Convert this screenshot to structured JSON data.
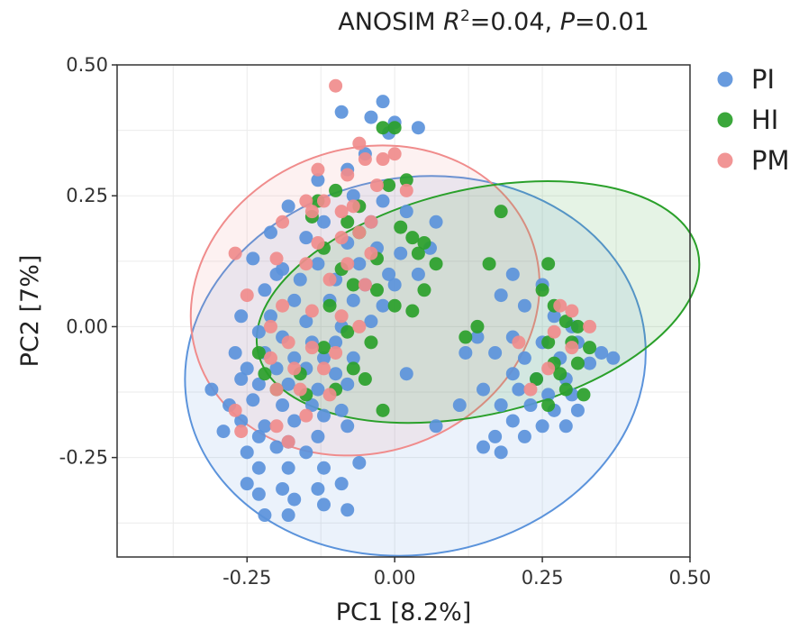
{
  "chart_data": {
    "type": "scatter",
    "title": "ANOSIM R²=0.04, P=0.01",
    "title_parts": {
      "method": "ANOSIM",
      "r_symbol": "R",
      "r_sup": "2",
      "r_value": "=0.04,",
      "p_symbol": "P",
      "p_value": "=0.01"
    },
    "xlabel": "PC1 [8.2%]",
    "ylabel": "PC2 [7%]",
    "xlim": [
      -0.47,
      0.5
    ],
    "ylim": [
      -0.44,
      0.5
    ],
    "xticks": [
      -0.25,
      0.0,
      0.25,
      0.5
    ],
    "xtick_labels": [
      "-0.25",
      "0.00",
      "0.25",
      "0.50"
    ],
    "yticks": [
      -0.25,
      0.0,
      0.25,
      0.5
    ],
    "ytick_labels": [
      "-0.25",
      "0.00",
      "0.25",
      "0.50"
    ],
    "grid": true,
    "legend_position": "top-right",
    "series": [
      {
        "name": "PI",
        "color": "#5b93db",
        "ellipse": {
          "cx": 0.035,
          "cy": -0.075,
          "rx": 0.392,
          "ry": 0.36,
          "angle": -10
        },
        "points": [
          [
            -0.02,
            0.43
          ],
          [
            -0.09,
            0.41
          ],
          [
            -0.04,
            0.4
          ],
          [
            0.0,
            0.39
          ],
          [
            0.04,
            0.38
          ],
          [
            -0.01,
            0.37
          ],
          [
            -0.05,
            0.33
          ],
          [
            -0.08,
            0.3
          ],
          [
            -0.13,
            0.28
          ],
          [
            -0.07,
            0.25
          ],
          [
            -0.02,
            0.24
          ],
          [
            0.02,
            0.22
          ],
          [
            -0.18,
            0.23
          ],
          [
            -0.12,
            0.2
          ],
          [
            -0.04,
            0.2
          ],
          [
            0.07,
            0.2
          ],
          [
            -0.21,
            0.18
          ],
          [
            -0.15,
            0.17
          ],
          [
            -0.08,
            0.16
          ],
          [
            -0.03,
            0.15
          ],
          [
            0.01,
            0.14
          ],
          [
            0.06,
            0.15
          ],
          [
            -0.24,
            0.13
          ],
          [
            -0.19,
            0.11
          ],
          [
            -0.13,
            0.12
          ],
          [
            -0.06,
            0.12
          ],
          [
            -0.01,
            0.1
          ],
          [
            0.04,
            0.1
          ],
          [
            -0.2,
            0.1
          ],
          [
            -0.16,
            0.09
          ],
          [
            -0.1,
            0.09
          ],
          [
            -0.05,
            0.08
          ],
          [
            0.0,
            0.08
          ],
          [
            -0.22,
            0.07
          ],
          [
            -0.17,
            0.05
          ],
          [
            -0.11,
            0.05
          ],
          [
            -0.07,
            0.05
          ],
          [
            -0.02,
            0.04
          ],
          [
            -0.26,
            0.02
          ],
          [
            -0.21,
            0.02
          ],
          [
            -0.15,
            0.01
          ],
          [
            -0.09,
            0.0
          ],
          [
            -0.04,
            0.01
          ],
          [
            -0.23,
            -0.01
          ],
          [
            -0.19,
            -0.02
          ],
          [
            -0.14,
            -0.03
          ],
          [
            -0.1,
            -0.03
          ],
          [
            -0.27,
            -0.05
          ],
          [
            -0.22,
            -0.05
          ],
          [
            -0.17,
            -0.06
          ],
          [
            -0.12,
            -0.06
          ],
          [
            -0.07,
            -0.06
          ],
          [
            -0.25,
            -0.08
          ],
          [
            -0.2,
            -0.08
          ],
          [
            -0.15,
            -0.08
          ],
          [
            -0.1,
            -0.09
          ],
          [
            0.02,
            -0.09
          ],
          [
            -0.31,
            -0.12
          ],
          [
            -0.26,
            -0.1
          ],
          [
            -0.23,
            -0.11
          ],
          [
            -0.18,
            -0.11
          ],
          [
            -0.13,
            -0.12
          ],
          [
            -0.08,
            -0.11
          ],
          [
            -0.28,
            -0.15
          ],
          [
            -0.24,
            -0.14
          ],
          [
            -0.19,
            -0.15
          ],
          [
            -0.14,
            -0.15
          ],
          [
            -0.09,
            -0.16
          ],
          [
            -0.26,
            -0.18
          ],
          [
            -0.22,
            -0.19
          ],
          [
            -0.17,
            -0.18
          ],
          [
            -0.12,
            -0.17
          ],
          [
            -0.29,
            -0.2
          ],
          [
            -0.23,
            -0.21
          ],
          [
            -0.18,
            -0.22
          ],
          [
            -0.13,
            -0.21
          ],
          [
            -0.08,
            -0.19
          ],
          [
            -0.25,
            -0.24
          ],
          [
            -0.2,
            -0.23
          ],
          [
            -0.15,
            -0.24
          ],
          [
            -0.23,
            -0.27
          ],
          [
            -0.18,
            -0.27
          ],
          [
            -0.12,
            -0.27
          ],
          [
            -0.06,
            -0.26
          ],
          [
            -0.25,
            -0.3
          ],
          [
            -0.19,
            -0.31
          ],
          [
            -0.13,
            -0.31
          ],
          [
            -0.09,
            -0.3
          ],
          [
            -0.23,
            -0.32
          ],
          [
            -0.17,
            -0.33
          ],
          [
            -0.12,
            -0.34
          ],
          [
            -0.08,
            -0.35
          ],
          [
            -0.22,
            -0.36
          ],
          [
            -0.18,
            -0.36
          ],
          [
            0.2,
            0.1
          ],
          [
            0.25,
            0.08
          ],
          [
            0.18,
            0.06
          ],
          [
            0.22,
            0.04
          ],
          [
            0.27,
            0.02
          ],
          [
            0.3,
            0.0
          ],
          [
            0.14,
            -0.02
          ],
          [
            0.2,
            -0.02
          ],
          [
            0.25,
            -0.03
          ],
          [
            0.31,
            -0.03
          ],
          [
            0.35,
            -0.05
          ],
          [
            0.12,
            -0.05
          ],
          [
            0.17,
            -0.05
          ],
          [
            0.22,
            -0.06
          ],
          [
            0.28,
            -0.06
          ],
          [
            0.33,
            -0.07
          ],
          [
            0.37,
            -0.06
          ],
          [
            0.2,
            -0.09
          ],
          [
            0.24,
            -0.1
          ],
          [
            0.29,
            -0.1
          ],
          [
            0.15,
            -0.12
          ],
          [
            0.21,
            -0.12
          ],
          [
            0.26,
            -0.13
          ],
          [
            0.3,
            -0.13
          ],
          [
            0.18,
            -0.15
          ],
          [
            0.23,
            -0.15
          ],
          [
            0.27,
            -0.16
          ],
          [
            0.31,
            -0.16
          ],
          [
            0.2,
            -0.18
          ],
          [
            0.25,
            -0.19
          ],
          [
            0.29,
            -0.19
          ],
          [
            0.17,
            -0.21
          ],
          [
            0.22,
            -0.21
          ],
          [
            0.07,
            -0.19
          ],
          [
            0.15,
            -0.23
          ],
          [
            0.18,
            -0.24
          ],
          [
            0.11,
            -0.15
          ]
        ]
      },
      {
        "name": "HI",
        "color": "#2aa02a",
        "ellipse": {
          "cx": 0.141,
          "cy": 0.047,
          "rx": 0.382,
          "ry": 0.215,
          "angle": -13
        },
        "points": [
          [
            -0.02,
            0.38
          ],
          [
            0.0,
            0.38
          ],
          [
            -0.1,
            0.26
          ],
          [
            -0.13,
            0.24
          ],
          [
            -0.06,
            0.23
          ],
          [
            -0.01,
            0.27
          ],
          [
            0.02,
            0.28
          ],
          [
            0.18,
            0.22
          ],
          [
            -0.14,
            0.21
          ],
          [
            -0.08,
            0.2
          ],
          [
            0.01,
            0.19
          ],
          [
            0.03,
            0.17
          ],
          [
            0.05,
            0.16
          ],
          [
            -0.12,
            0.15
          ],
          [
            0.04,
            0.14
          ],
          [
            0.07,
            0.12
          ],
          [
            -0.09,
            0.11
          ],
          [
            0.16,
            0.12
          ],
          [
            -0.07,
            0.08
          ],
          [
            -0.03,
            0.07
          ],
          [
            0.05,
            0.07
          ],
          [
            -0.11,
            0.04
          ],
          [
            0.0,
            0.04
          ],
          [
            0.03,
            0.03
          ],
          [
            -0.08,
            -0.01
          ],
          [
            -0.04,
            -0.03
          ],
          [
            -0.12,
            -0.04
          ],
          [
            -0.07,
            -0.08
          ],
          [
            -0.16,
            -0.09
          ],
          [
            -0.05,
            -0.1
          ],
          [
            -0.1,
            -0.12
          ],
          [
            -0.02,
            -0.16
          ],
          [
            0.12,
            -0.02
          ],
          [
            0.26,
            0.12
          ],
          [
            0.25,
            0.07
          ],
          [
            0.27,
            0.04
          ],
          [
            0.29,
            0.01
          ],
          [
            0.31,
            0.0
          ],
          [
            0.26,
            -0.03
          ],
          [
            0.3,
            -0.03
          ],
          [
            0.33,
            -0.04
          ],
          [
            0.27,
            -0.07
          ],
          [
            0.31,
            -0.07
          ],
          [
            0.28,
            -0.09
          ],
          [
            0.24,
            -0.1
          ],
          [
            0.29,
            -0.12
          ],
          [
            0.32,
            -0.13
          ],
          [
            0.26,
            -0.15
          ],
          [
            -0.23,
            -0.05
          ],
          [
            -0.22,
            -0.09
          ],
          [
            -0.2,
            -0.12
          ],
          [
            -0.15,
            -0.13
          ],
          [
            -0.03,
            0.13
          ],
          [
            -0.06,
            0.18
          ],
          [
            0.14,
            0.0
          ]
        ]
      },
      {
        "name": "PM",
        "color": "#f08c8c",
        "ellipse": {
          "cx": -0.05,
          "cy": 0.05,
          "rx": 0.3,
          "ry": 0.29,
          "angle": -20
        },
        "points": [
          [
            -0.1,
            0.46
          ],
          [
            -0.06,
            0.35
          ],
          [
            0.0,
            0.33
          ],
          [
            -0.05,
            0.32
          ],
          [
            -0.13,
            0.3
          ],
          [
            -0.08,
            0.29
          ],
          [
            -0.03,
            0.27
          ],
          [
            0.02,
            0.26
          ],
          [
            -0.15,
            0.24
          ],
          [
            -0.07,
            0.23
          ],
          [
            -0.09,
            0.22
          ],
          [
            -0.14,
            0.22
          ],
          [
            -0.19,
            0.2
          ],
          [
            -0.04,
            0.2
          ],
          [
            -0.06,
            0.18
          ],
          [
            -0.09,
            0.17
          ],
          [
            -0.13,
            0.16
          ],
          [
            -0.27,
            0.14
          ],
          [
            -0.2,
            0.13
          ],
          [
            -0.15,
            0.12
          ],
          [
            -0.08,
            0.12
          ],
          [
            -0.11,
            0.09
          ],
          [
            -0.05,
            0.08
          ],
          [
            -0.25,
            0.06
          ],
          [
            -0.19,
            0.04
          ],
          [
            -0.14,
            0.03
          ],
          [
            -0.09,
            0.02
          ],
          [
            -0.06,
            0.0
          ],
          [
            -0.21,
            0.0
          ],
          [
            -0.18,
            -0.03
          ],
          [
            -0.14,
            -0.04
          ],
          [
            -0.1,
            -0.05
          ],
          [
            -0.21,
            -0.06
          ],
          [
            -0.17,
            -0.08
          ],
          [
            -0.12,
            -0.08
          ],
          [
            -0.2,
            -0.12
          ],
          [
            -0.16,
            -0.12
          ],
          [
            -0.11,
            -0.13
          ],
          [
            -0.15,
            -0.17
          ],
          [
            -0.2,
            -0.19
          ],
          [
            -0.18,
            -0.22
          ],
          [
            -0.27,
            -0.16
          ],
          [
            -0.26,
            -0.2
          ],
          [
            0.28,
            0.04
          ],
          [
            0.33,
            0.0
          ],
          [
            0.3,
            -0.04
          ],
          [
            0.27,
            -0.01
          ],
          [
            0.21,
            -0.03
          ],
          [
            0.26,
            -0.08
          ],
          [
            0.23,
            -0.12
          ],
          [
            -0.02,
            0.32
          ],
          [
            -0.12,
            0.24
          ],
          [
            -0.04,
            0.14
          ],
          [
            0.3,
            0.03
          ]
        ]
      }
    ]
  }
}
